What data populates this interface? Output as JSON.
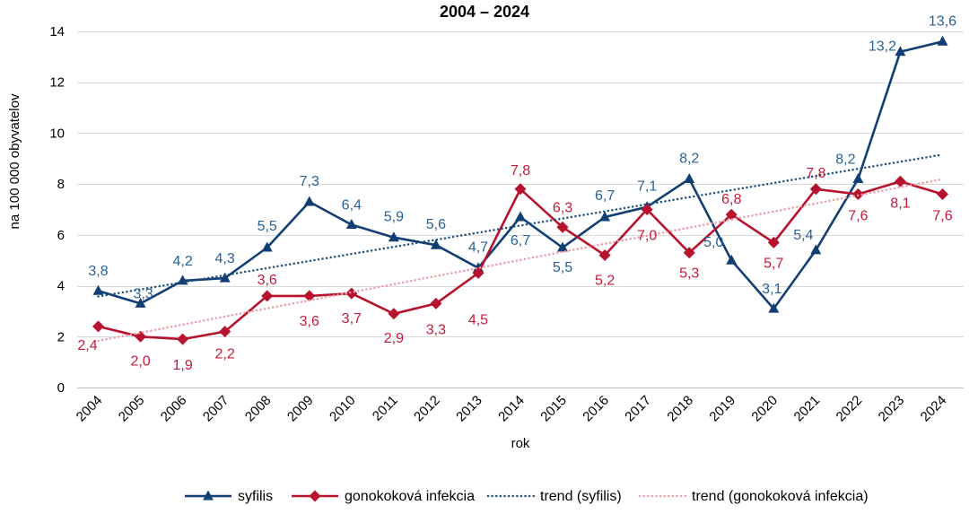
{
  "chart_data": {
    "type": "line",
    "title": "2004 – 2024",
    "xlabel": "rok",
    "ylabel": "na 100 000 obyvatelov",
    "categories": [
      "2004",
      "2005",
      "2006",
      "2007",
      "2008",
      "2009",
      "2010",
      "2011",
      "2012",
      "2013",
      "2014",
      "2015",
      "2016",
      "2017",
      "2018",
      "2019",
      "2020",
      "2021",
      "2022",
      "2023",
      "2024"
    ],
    "ylim": [
      0,
      14
    ],
    "yticks": [
      0,
      2,
      4,
      6,
      8,
      10,
      12,
      14
    ],
    "grid": true,
    "legend": "bottom",
    "data_labels": true,
    "series": [
      {
        "name": "syfilis",
        "values": [
          3.8,
          3.3,
          4.2,
          4.3,
          5.5,
          7.3,
          6.4,
          5.9,
          5.6,
          4.7,
          6.7,
          5.5,
          6.7,
          7.1,
          8.2,
          5.0,
          3.1,
          5.4,
          8.2,
          13.2,
          13.6
        ],
        "color": "#123F73",
        "label_color": "#2A6296",
        "marker": "triangle"
      },
      {
        "name": "gonokoková infekcia",
        "values": [
          2.4,
          2.0,
          1.9,
          2.2,
          3.6,
          3.6,
          3.7,
          2.9,
          3.3,
          4.5,
          7.8,
          6.3,
          5.2,
          7.0,
          5.3,
          6.8,
          5.7,
          7.8,
          7.6,
          8.1,
          7.6
        ],
        "color": "#B7122E",
        "label_color": "#C41A3B",
        "marker": "diamond"
      }
    ],
    "trendlines": [
      {
        "name": "trend (syfilis)",
        "series_index": 0,
        "type": "linear",
        "color": "#1F4E79"
      },
      {
        "name": "trend (gonokoková infekcia)",
        "series_index": 1,
        "type": "linear",
        "color": "#F09AA5"
      }
    ]
  }
}
